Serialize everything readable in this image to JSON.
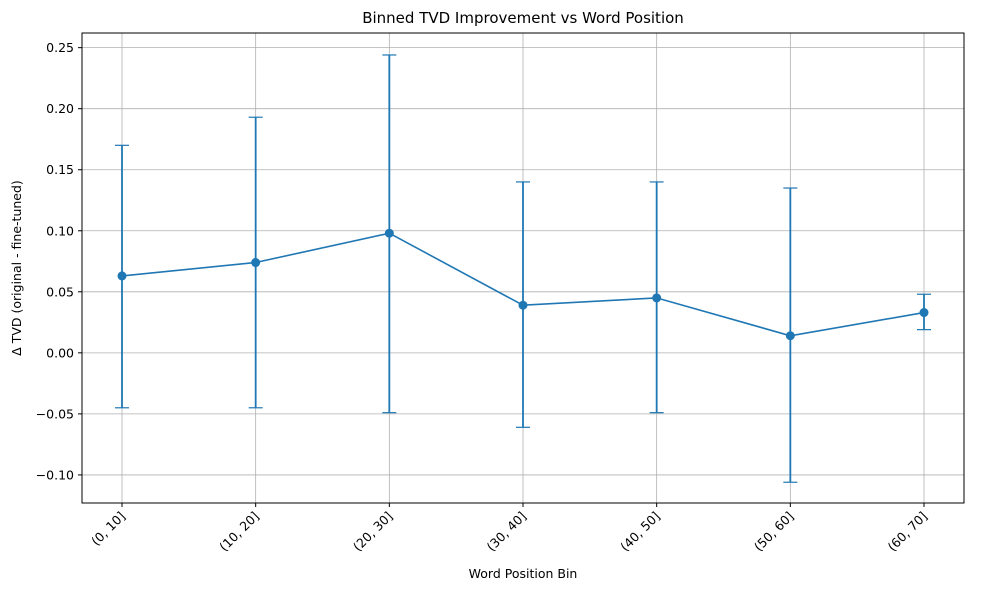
{
  "chart_data": {
    "type": "line",
    "title": "Binned TVD Improvement vs Word Position",
    "xlabel": "Word Position Bin",
    "ylabel": "Δ TVD (original - fine-tuned)",
    "categories": [
      "(0, 10]",
      "(10, 20]",
      "(20, 30]",
      "(30, 40]",
      "(40, 50]",
      "(50, 60]",
      "(60, 70]"
    ],
    "series": [
      {
        "values": [
          0.063,
          0.074,
          0.098,
          0.039,
          0.045,
          0.014,
          0.033
        ],
        "error_low": [
          -0.045,
          -0.045,
          -0.049,
          -0.061,
          -0.049,
          -0.106,
          0.019
        ],
        "error_high": [
          0.17,
          0.193,
          0.244,
          0.14,
          0.14,
          0.135,
          0.048
        ],
        "color": "#1f77b4"
      }
    ],
    "ylim": [
      -0.123,
      0.262
    ],
    "yticks": [
      -0.1,
      -0.05,
      0.0,
      0.05,
      0.1,
      0.15,
      0.2,
      0.25
    ],
    "ytick_labels": [
      "−0.10",
      "−0.05",
      "0.00",
      "0.05",
      "0.10",
      "0.15",
      "0.20",
      "0.25"
    ],
    "grid": true,
    "xtick_rotation": 45
  }
}
